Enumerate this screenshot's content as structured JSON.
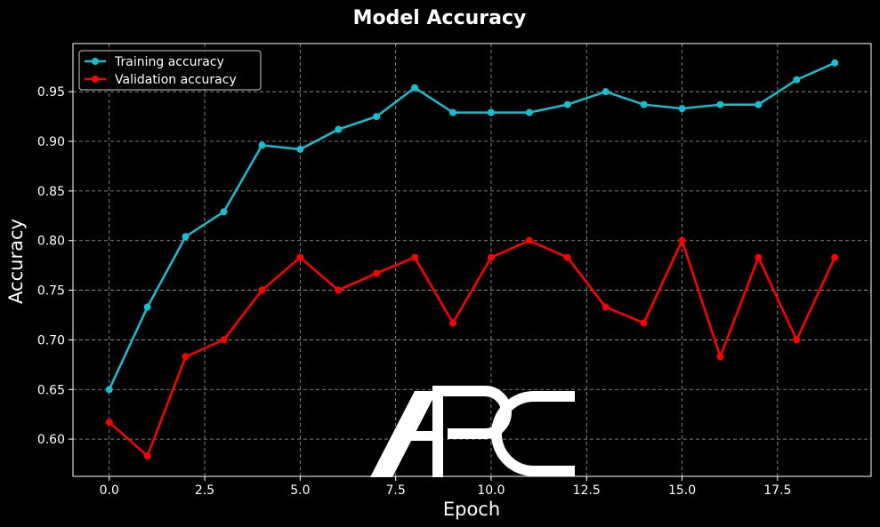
{
  "chart_data": {
    "type": "line",
    "title": "Model Accuracy",
    "xlabel": "Epoch",
    "ylabel": "Accuracy",
    "xlim": [
      -0.95,
      19.95
    ],
    "ylim": [
      0.5625,
      0.9985
    ],
    "xticks": [
      0.0,
      2.5,
      5.0,
      7.5,
      10.0,
      12.5,
      15.0,
      17.5
    ],
    "xtick_labels": [
      "0.0",
      "2.5",
      "5.0",
      "7.5",
      "10.0",
      "12.5",
      "15.0",
      "17.5"
    ],
    "yticks": [
      0.6,
      0.65,
      0.7,
      0.75,
      0.8,
      0.85,
      0.9,
      0.95
    ],
    "ytick_labels": [
      "0.60",
      "0.65",
      "0.70",
      "0.75",
      "0.80",
      "0.85",
      "0.90",
      "0.95"
    ],
    "grid": true,
    "legend_position": "top-left",
    "x": [
      0,
      1,
      2,
      3,
      4,
      5,
      6,
      7,
      8,
      9,
      10,
      11,
      12,
      13,
      14,
      15,
      16,
      17,
      18,
      19
    ],
    "series": [
      {
        "name": "Training accuracy",
        "color": "#17becf",
        "values": [
          0.65,
          0.733,
          0.804,
          0.829,
          0.896,
          0.892,
          0.912,
          0.925,
          0.954,
          0.929,
          0.929,
          0.929,
          0.937,
          0.95,
          0.937,
          0.933,
          0.937,
          0.937,
          0.962,
          0.979
        ]
      },
      {
        "name": "Validation accuracy",
        "color": "#ff0000",
        "values": [
          0.617,
          0.583,
          0.683,
          0.7,
          0.75,
          0.783,
          0.75,
          0.767,
          0.783,
          0.717,
          0.783,
          0.8,
          0.783,
          0.733,
          0.717,
          0.8,
          0.683,
          0.783,
          0.7,
          0.783
        ]
      }
    ],
    "watermark_text": "ARC"
  },
  "colors": {
    "background": "#000000",
    "foreground": "#ffffff",
    "grid": "#bdbdbd"
  }
}
